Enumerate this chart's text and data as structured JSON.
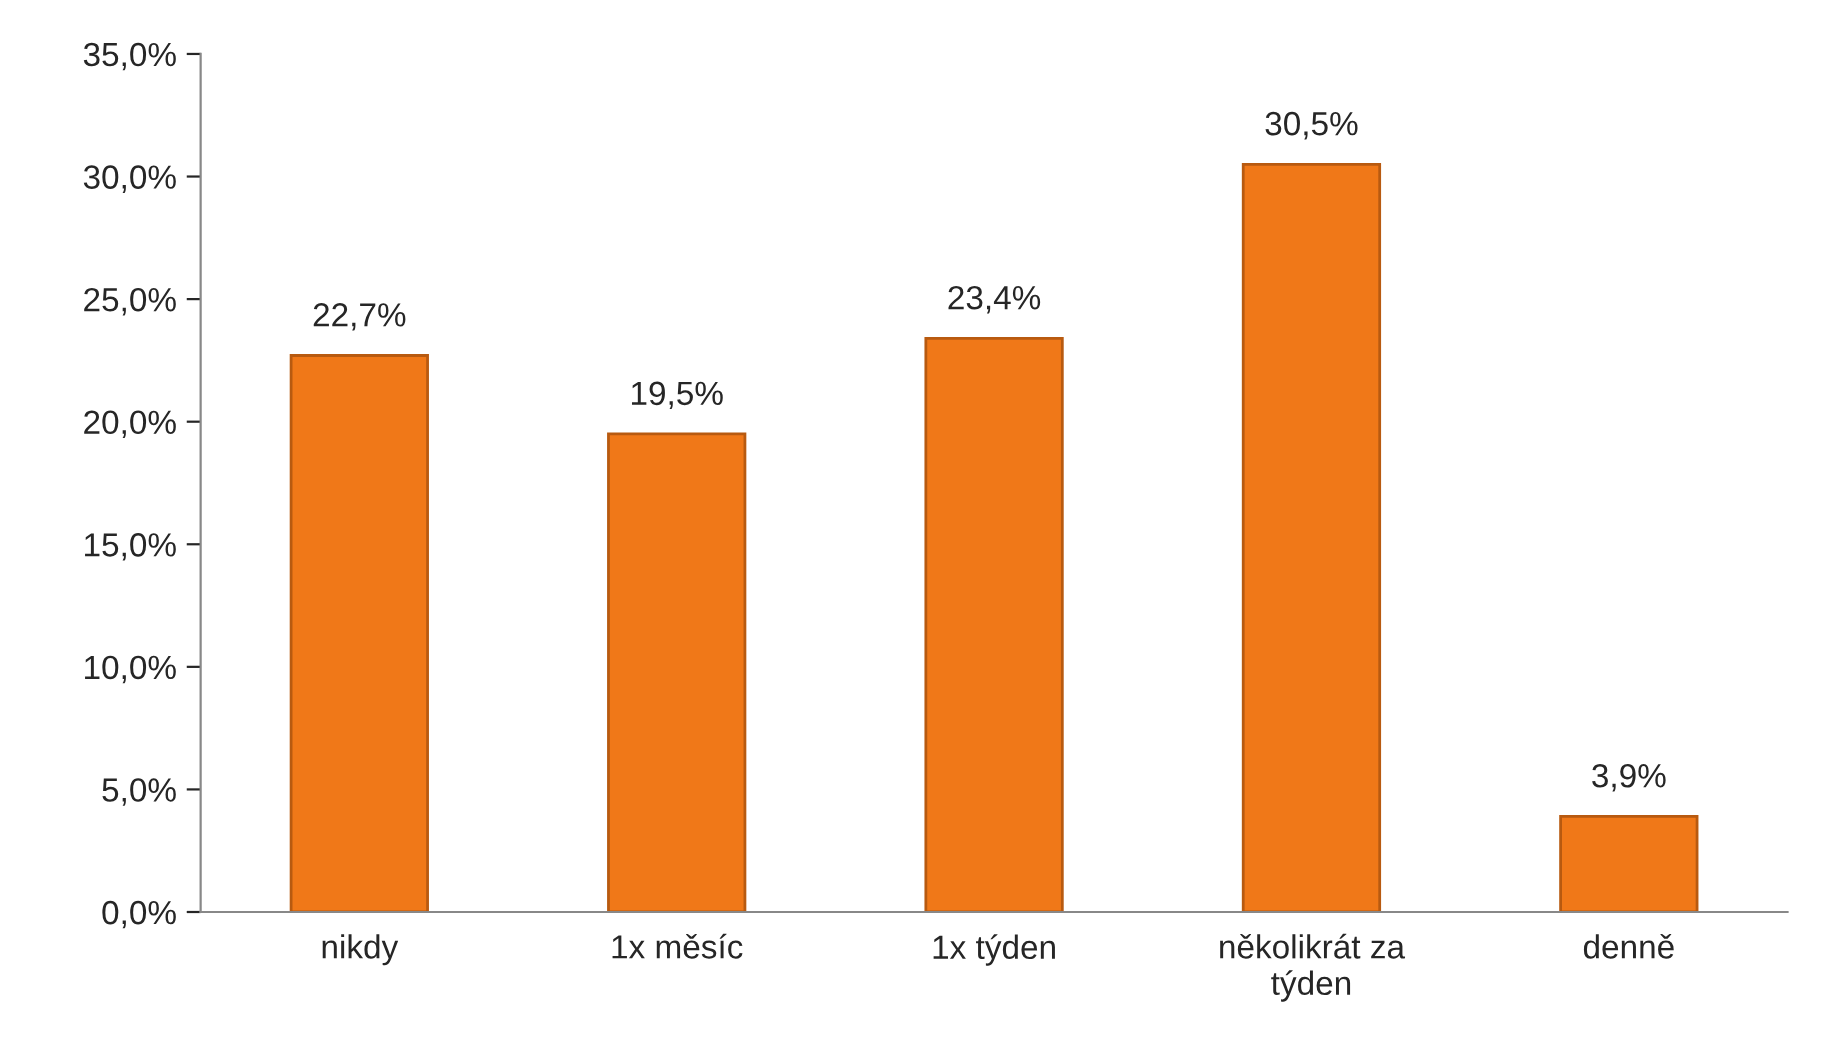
{
  "chart_data": {
    "type": "bar",
    "categories": [
      "nikdy",
      "1x měsíc",
      "1x týden",
      "několikrát za týden",
      "denně"
    ],
    "values": [
      22.7,
      19.5,
      23.4,
      30.5,
      3.9
    ],
    "value_labels": [
      "22,7%",
      "19,5%",
      "23,4%",
      "30,5%",
      "3,9%"
    ],
    "color": "#f07818",
    "ylim": [
      0,
      35
    ],
    "yticks": [
      {
        "value": 0,
        "label": "0,0%"
      },
      {
        "value": 5,
        "label": "5,0%"
      },
      {
        "value": 10,
        "label": "10,0%"
      },
      {
        "value": 15,
        "label": "15,0%"
      },
      {
        "value": 20,
        "label": "20,0%"
      },
      {
        "value": 25,
        "label": "25,0%"
      },
      {
        "value": 30,
        "label": "30,0%"
      },
      {
        "value": 35,
        "label": "35,0%"
      }
    ],
    "grid": false,
    "legend": false
  }
}
